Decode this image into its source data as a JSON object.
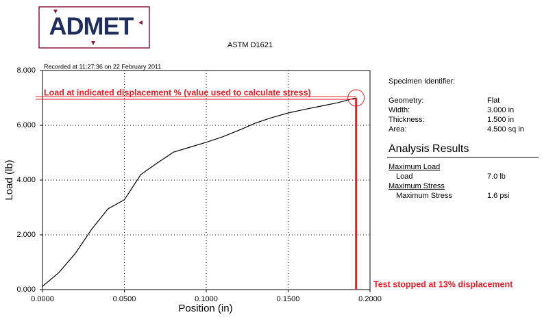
{
  "logo": "ADMET",
  "chart_data": {
    "type": "line",
    "title": "ASTM D1621",
    "subtitle": "Recorded at 11:27:36 on 22 February 2011",
    "x_label": "Position (in)",
    "y_label": "Load (lb)",
    "x": [
      0,
      0.01,
      0.02,
      0.03,
      0.04,
      0.05,
      0.06,
      0.07,
      0.08,
      0.09,
      0.1,
      0.11,
      0.12,
      0.13,
      0.14,
      0.15,
      0.16,
      0.17,
      0.18,
      0.19,
      0.1915
    ],
    "values": [
      0.12,
      0.62,
      1.32,
      2.2,
      2.95,
      3.28,
      4.2,
      4.62,
      5.02,
      5.2,
      5.38,
      5.58,
      5.82,
      6.08,
      6.28,
      6.45,
      6.58,
      6.7,
      6.82,
      6.98,
      7.0
    ],
    "color": "#000000",
    "xlim": [
      0,
      0.2
    ],
    "xticks": [
      {
        "value": 0,
        "label": "0.0000"
      },
      {
        "value": 0.05,
        "label": "0.0500"
      },
      {
        "value": 0.1,
        "label": "0.1000"
      },
      {
        "value": 0.15,
        "label": "0.1500"
      },
      {
        "value": 0.2,
        "label": "0.2000"
      }
    ],
    "ylim": [
      0,
      8
    ],
    "yticks": [
      {
        "value": 0,
        "label": "0.000"
      },
      {
        "value": 2,
        "label": "2.000"
      },
      {
        "value": 4,
        "label": "4.000"
      },
      {
        "value": 6,
        "label": "6.000"
      },
      {
        "value": 8,
        "label": "8.000"
      }
    ],
    "grid": true,
    "annotations": [
      "Load at indicated displacement % (value used to calculate stress)",
      "Test stopped at 13% displacement"
    ],
    "annotation_color": "#e8202a"
  },
  "specimen": {
    "identifier": "Specimen Identifier:",
    "rows": [
      [
        "Geometry:",
        "Flat"
      ],
      [
        "Width:",
        "3.000 in"
      ],
      [
        "Thickness:",
        "1.500 in"
      ],
      [
        "Area:",
        "4.500 sq in"
      ]
    ]
  },
  "analysis": {
    "title": "Analysis Results",
    "groups": [
      {
        "heading": "Maximum Load",
        "label": "Load",
        "value": "7.0 lb"
      },
      {
        "heading": "Maximum Stress",
        "label": "Maximum Stress",
        "value": "1.6 psi"
      }
    ]
  }
}
